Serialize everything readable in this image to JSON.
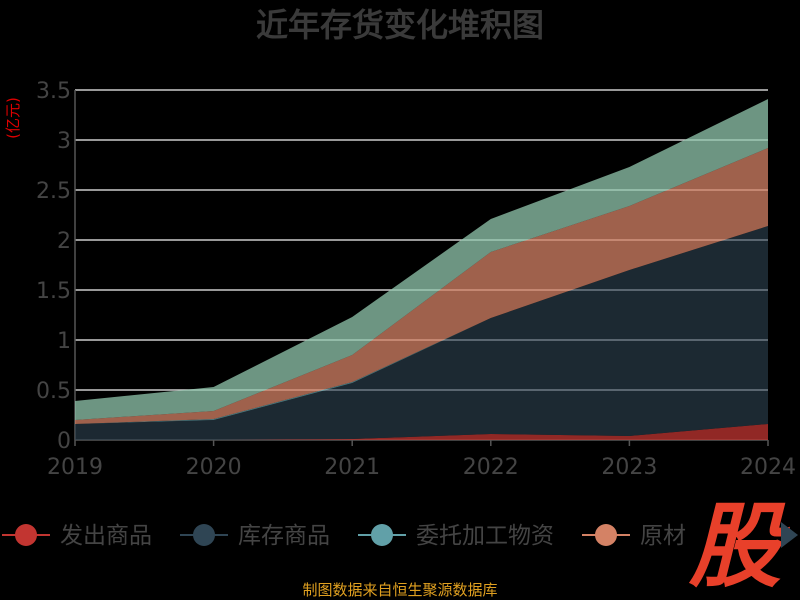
{
  "chart_data": {
    "type": "area",
    "stacked": true,
    "title": "近年存货变化堆积图",
    "ylabel": "(亿元)",
    "xlabel": "",
    "x": [
      "2019",
      "2020",
      "2021",
      "2022",
      "2023",
      "2024"
    ],
    "ylim": [
      0,
      3.5
    ],
    "y_ticks": [
      "0",
      "0.5",
      "1",
      "1.5",
      "2",
      "2.5",
      "3",
      "3.5"
    ],
    "grid": true,
    "legend_position": "bottom",
    "series": [
      {
        "name": "发出商品",
        "color": "#c23531",
        "values": [
          0.0,
          0.0,
          0.01,
          0.06,
          0.04,
          0.16
        ]
      },
      {
        "name": "库存商品",
        "color": "#2f4554",
        "values": [
          0.16,
          0.2,
          0.56,
          1.16,
          1.66,
          1.98
        ]
      },
      {
        "name": "委托加工物资",
        "color": "#61a0a8",
        "values": [
          0.0,
          0.01,
          0.01,
          0.0,
          0.0,
          0.0
        ]
      },
      {
        "name": "原材料",
        "color": "#d48265",
        "values": [
          0.04,
          0.08,
          0.27,
          0.66,
          0.64,
          0.78
        ]
      },
      {
        "name": "",
        "color": "#91c7ae",
        "values": [
          0.19,
          0.24,
          0.38,
          0.33,
          0.39,
          0.49
        ]
      }
    ],
    "legend_visible": [
      "发出商品",
      "库存商品",
      "委托加工物资",
      "原材"
    ]
  },
  "footer": {
    "source": "制图数据来自恒生聚源数据库"
  },
  "watermark": {
    "text": "股"
  },
  "colors": {
    "background": "#000000",
    "title": "#3a3a3a",
    "axis_text": "#444444",
    "unit_text": "#e00000",
    "grid": "#cccccc",
    "source_text": "#e0a020",
    "watermark": "#e8402a"
  }
}
